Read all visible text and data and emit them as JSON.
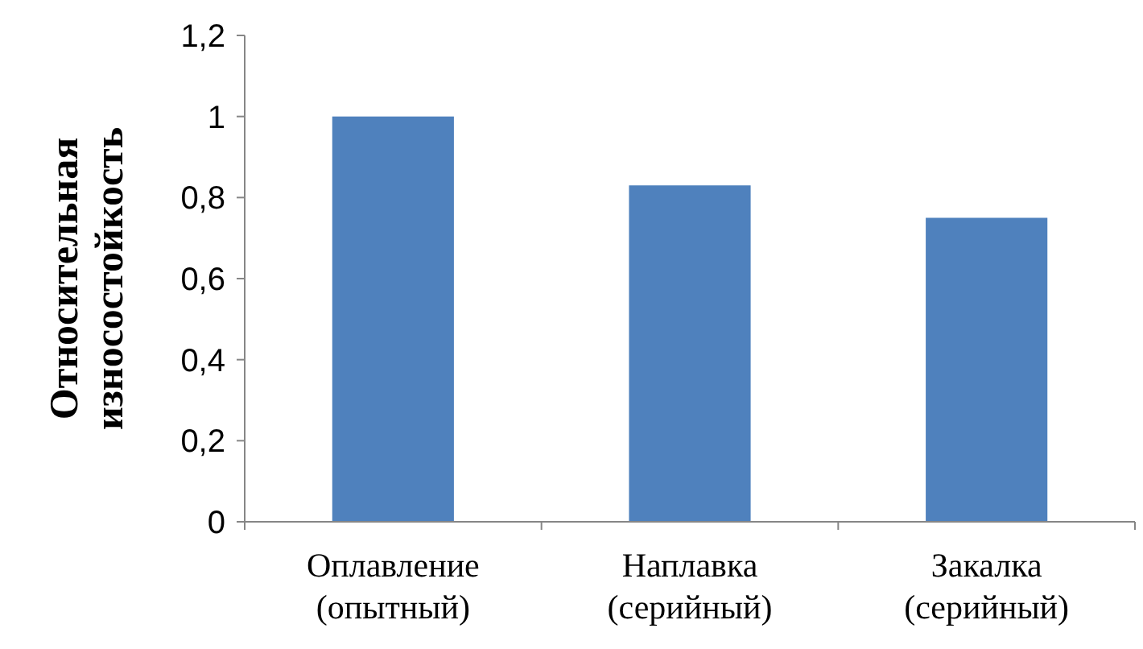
{
  "chart_data": {
    "type": "bar",
    "ylabel": "Относительная\nизносостойкость",
    "categories": [
      "Оплавление\n(опытный)",
      "Наплавка\n(серийный)",
      "Закалка\n(серийный)"
    ],
    "values": [
      1,
      0.83,
      0.75
    ],
    "color": "#4f81bd",
    "ylim": [
      0,
      1.2
    ],
    "yticks": [
      0,
      {
        "value": 0.2,
        "label": "0,2"
      },
      {
        "value": 0.4,
        "label": "0,4"
      },
      {
        "value": 0.6,
        "label": "0,6"
      },
      {
        "value": 0.8,
        "label": "0,8"
      },
      1,
      {
        "value": 1.2,
        "label": "1,2"
      }
    ],
    "grid": false
  }
}
